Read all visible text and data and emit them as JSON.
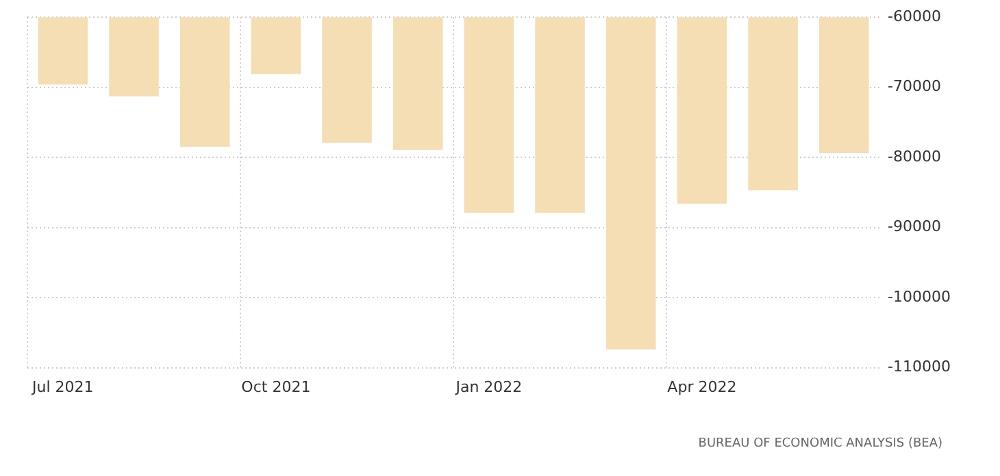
{
  "chart_data": {
    "type": "bar",
    "categories": [
      "Jul 2021",
      null,
      null,
      "Oct 2021",
      null,
      null,
      "Jan 2022",
      null,
      null,
      "Apr 2022",
      null,
      null
    ],
    "values": [
      -69600,
      -71300,
      -78500,
      -68100,
      -77900,
      -78900,
      -87900,
      -87900,
      -107400,
      -86600,
      -84700,
      -79400
    ],
    "color": "#f5deb3",
    "ylim": [
      -110000,
      -60000
    ],
    "yticks": [
      -110000,
      -100000,
      -90000,
      -80000,
      -70000,
      -60000
    ],
    "grid": true,
    "annotations": [
      "BUREAU OF ECONOMIC ANALYSIS (BEA)"
    ]
  }
}
